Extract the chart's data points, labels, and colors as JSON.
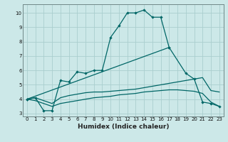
{
  "xlabel": "Humidex (Indice chaleur)",
  "bg_color": "#cce8e8",
  "grid_color": "#aacece",
  "line_color": "#006666",
  "ylim": [
    2.8,
    10.6
  ],
  "xlim": [
    -0.5,
    23.5
  ],
  "yticks": [
    3,
    4,
    5,
    6,
    7,
    8,
    9,
    10
  ],
  "xticks": [
    0,
    1,
    2,
    3,
    4,
    5,
    6,
    7,
    8,
    9,
    10,
    11,
    12,
    13,
    14,
    15,
    16,
    17,
    18,
    19,
    20,
    21,
    22,
    23
  ],
  "line1_x": [
    0,
    1,
    2,
    3,
    4,
    5,
    6,
    7,
    8,
    9,
    10,
    11,
    12,
    13,
    14,
    15,
    16,
    17
  ],
  "line1_y": [
    4.0,
    4.1,
    3.2,
    3.2,
    5.3,
    5.2,
    5.9,
    5.8,
    6.0,
    6.0,
    8.3,
    9.1,
    10.0,
    10.0,
    10.2,
    9.7,
    9.7,
    7.6
  ],
  "line2_x": [
    0,
    17,
    19,
    20,
    21,
    22,
    23
  ],
  "line2_y": [
    4.0,
    7.6,
    5.8,
    5.4,
    3.8,
    3.7,
    3.5
  ],
  "line3_x": [
    0,
    1,
    2,
    3,
    4,
    5,
    6,
    7,
    8,
    9,
    10,
    11,
    12,
    13,
    14,
    15,
    16,
    17,
    18,
    19,
    20,
    21,
    22,
    23
  ],
  "line3_y": [
    4.0,
    4.1,
    3.9,
    3.7,
    4.1,
    4.25,
    4.35,
    4.45,
    4.5,
    4.5,
    4.55,
    4.6,
    4.65,
    4.7,
    4.8,
    4.9,
    5.0,
    5.1,
    5.2,
    5.3,
    5.4,
    5.5,
    4.6,
    4.5
  ],
  "line4_x": [
    0,
    1,
    2,
    3,
    4,
    5,
    6,
    7,
    8,
    9,
    10,
    11,
    12,
    13,
    14,
    15,
    16,
    17,
    18,
    19,
    20,
    21,
    22,
    23
  ],
  "line4_y": [
    4.0,
    3.9,
    3.7,
    3.5,
    3.7,
    3.8,
    3.9,
    4.0,
    4.1,
    4.15,
    4.2,
    4.3,
    4.35,
    4.4,
    4.5,
    4.55,
    4.6,
    4.65,
    4.65,
    4.6,
    4.55,
    4.4,
    3.8,
    3.5
  ]
}
